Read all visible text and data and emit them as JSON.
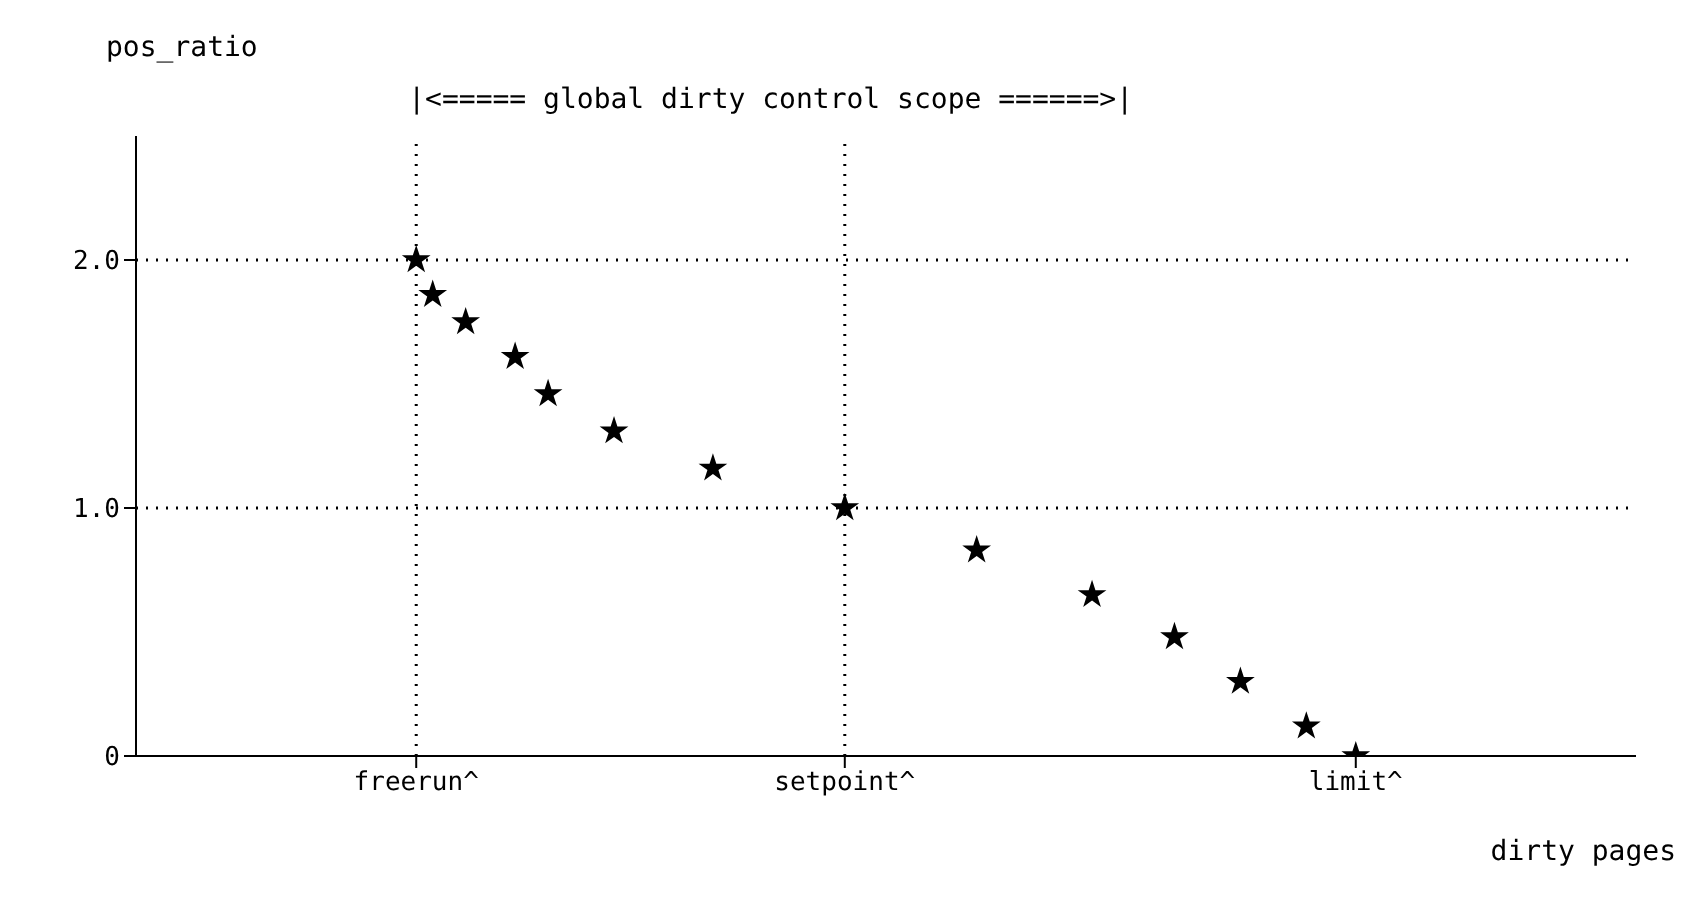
{
  "chart_data": {
    "type": "scatter",
    "ylabel": "pos_ratio",
    "xlabel": "dirty pages",
    "annotations": [
      "|<===== global dirty control scope ======>|"
    ],
    "categories": [
      null,
      null,
      null,
      null,
      null,
      null,
      null,
      null,
      null,
      null,
      null,
      null,
      null,
      null,
      null,
      null,
      null,
      "freerun^",
      null,
      null,
      null,
      null,
      null,
      null,
      null,
      null,
      null,
      null,
      null,
      null,
      null,
      null,
      null,
      null,
      null,
      null,
      null,
      null,
      null,
      null,
      null,
      null,
      null,
      "setpoint^",
      null,
      null,
      null,
      null,
      null,
      null,
      null,
      null,
      null,
      null,
      null,
      null,
      null,
      null,
      null,
      null,
      null,
      null,
      null,
      null,
      null,
      null,
      null,
      null,
      null,
      null,
      null,
      null,
      null,
      null,
      "limit^",
      null,
      null,
      null,
      null,
      null,
      null,
      null,
      null,
      null,
      null,
      null,
      null,
      null,
      null,
      null,
      null,
      null
    ],
    "values": [
      null,
      null,
      null,
      null,
      null,
      null,
      null,
      null,
      null,
      null,
      null,
      null,
      null,
      null,
      null,
      null,
      null,
      2.0,
      1.86,
      null,
      1.75,
      null,
      null,
      1.61,
      null,
      1.46,
      null,
      null,
      null,
      1.31,
      null,
      null,
      null,
      null,
      null,
      1.16,
      null,
      null,
      null,
      null,
      null,
      null,
      null,
      1.0,
      null,
      null,
      null,
      null,
      null,
      null,
      null,
      0.83,
      null,
      null,
      null,
      null,
      null,
      null,
      0.65,
      null,
      null,
      null,
      null,
      0.48,
      null,
      null,
      null,
      0.3,
      null,
      null,
      null,
      0.12,
      null,
      null,
      0,
      null,
      null,
      null,
      null,
      null,
      null,
      null,
      null,
      null,
      null,
      null,
      null,
      null,
      null,
      null,
      null,
      null
    ],
    "color": "#000000",
    "marker": "star",
    "ylim": [
      0,
      2.5
    ],
    "yticks": [
      0,
      {
        "value": 1,
        "label": "1.0"
      },
      {
        "value": 2,
        "label": "2.0"
      }
    ],
    "ref_lines": [
      {
        "axis": "y",
        "value": 2,
        "line_style": "dotted"
      },
      {
        "axis": "y",
        "value": 1,
        "line_style": "dotted"
      },
      {
        "axis": "x",
        "value": "freerun^",
        "line_style": "dotted"
      },
      {
        "axis": "x",
        "value": "setpoint^",
        "line_style": "dotted"
      }
    ]
  }
}
